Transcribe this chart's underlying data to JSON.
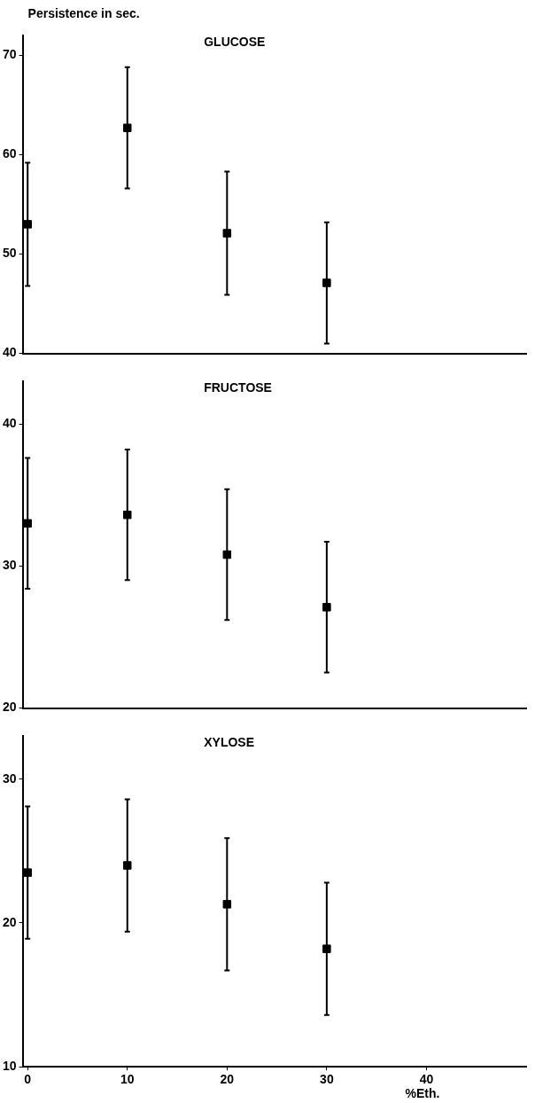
{
  "chart_data": [
    {
      "type": "scatter",
      "title": "GLUCOSE",
      "ylabel": "Persistence in sec.",
      "x": [
        0,
        10,
        20,
        30
      ],
      "xlim": [
        -0.5,
        50
      ],
      "xticks": [
        0,
        10,
        20,
        30,
        40
      ],
      "ylim": [
        40,
        72
      ],
      "yticks": [
        40,
        50,
        60,
        70
      ],
      "tick_labels": "y",
      "grid": false,
      "legend": false,
      "marker": "square",
      "series": [
        {
          "color": "#000000",
          "values": [
            53,
            62.7,
            52.1,
            47.1
          ],
          "errors": [
            6.2,
            6.1,
            6.2,
            6.1
          ]
        }
      ]
    },
    {
      "type": "scatter",
      "title": "FRUCTOSE",
      "x": [
        0,
        10,
        20,
        30
      ],
      "xlim": [
        -0.5,
        50
      ],
      "xticks": [
        0,
        10,
        20,
        30,
        40
      ],
      "ylim": [
        20,
        43
      ],
      "yticks": [
        20,
        30,
        40
      ],
      "tick_labels": "y",
      "grid": false,
      "legend": false,
      "marker": "square",
      "series": [
        {
          "color": "#000000",
          "values": [
            33,
            33.6,
            30.8,
            27.1
          ],
          "errors": [
            4.6,
            4.6,
            4.6,
            4.6
          ]
        }
      ]
    },
    {
      "type": "scatter",
      "title": "XYLOSE",
      "xlabel": "%Eth.",
      "x": [
        0,
        10,
        20,
        30
      ],
      "xlim": [
        -0.5,
        50
      ],
      "xticks": [
        0,
        10,
        20,
        30,
        40
      ],
      "ylim": [
        10,
        33
      ],
      "yticks": [
        10,
        20,
        30
      ],
      "grid": false,
      "legend": false,
      "marker": "square",
      "series": [
        {
          "color": "#000000",
          "values": [
            23.5,
            24,
            21.3,
            18.2
          ],
          "errors": [
            4.6,
            4.6,
            4.6,
            4.6
          ]
        }
      ]
    }
  ]
}
